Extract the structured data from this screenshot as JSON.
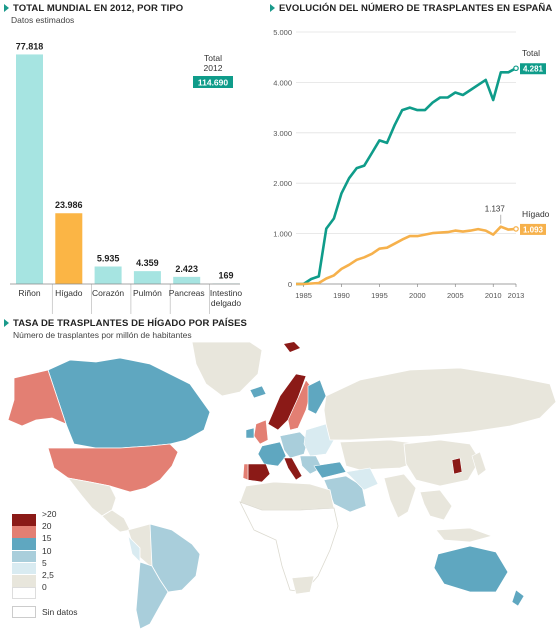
{
  "headers": {
    "world": "TOTAL MUNDIAL EN 2012, POR TIPO",
    "world_sub": "Datos estimados",
    "spain": "EVOLUCIÓN DEL NÚMERO DE TRASPLANTES EN ESPAÑA",
    "map": "TASA DE TRASPLANTES DE HÍGADO POR PAÍSES",
    "map_sub": "Número de trasplantes por millón de habitantes"
  },
  "colors": {
    "teal": "#0f9c8a",
    "orange": "#f6b14c",
    "bar_teal": "#a6e4e1",
    "bar_orange": "#fbb545",
    "map_red_dark": "#8b1a17",
    "map_red": "#e37f73",
    "map_blue": "#5fa7c0",
    "map_blue_light": "#a9cedb",
    "map_blue_pale": "#d9ebf1",
    "map_grey": "#e8e6dc",
    "map_nodata": "#ffffff"
  },
  "chart_data": [
    {
      "type": "bar",
      "categories": [
        "Riñon",
        "Hígado",
        "Corazón",
        "Pulmón",
        "Pancreas",
        "Intestino delgado"
      ],
      "category_lines": [
        [
          "Riñon"
        ],
        [
          "Hígado"
        ],
        [
          "Corazón"
        ],
        [
          "Pulmón"
        ],
        [
          "Pancreas"
        ],
        [
          "Intestino",
          "delgado"
        ]
      ],
      "values": [
        77818,
        23986,
        5935,
        4359,
        2423,
        169
      ],
      "value_labels": [
        "77.818",
        "23.986",
        "5.935",
        "4.359",
        "2.423",
        "169"
      ],
      "highlight": "Hígado",
      "total_label": "Total",
      "total_year": "2012",
      "total_value": "114.690",
      "ylim": [
        0,
        80000
      ]
    },
    {
      "type": "line",
      "ylim": [
        0,
        5000
      ],
      "yticks": [
        0,
        1000,
        2000,
        3000,
        4000,
        5000
      ],
      "ytick_labels": [
        "0",
        "1.000",
        "2.000",
        "3.000",
        "4.000",
        "5.000"
      ],
      "xlim": [
        1984,
        2013
      ],
      "xticks": [
        1985,
        1990,
        1995,
        2000,
        2005,
        2010,
        2013
      ],
      "xtick_labels": [
        "1985",
        "1990",
        "1995",
        "2000",
        "2005",
        "2010",
        "2013"
      ],
      "series": [
        {
          "name": "Total",
          "end_label": "4.281",
          "x": [
            1984,
            1985,
            1986,
            1987,
            1988,
            1989,
            1990,
            1991,
            1992,
            1993,
            1994,
            1995,
            1996,
            1997,
            1998,
            1999,
            2000,
            2001,
            2002,
            2003,
            2004,
            2005,
            2006,
            2007,
            2008,
            2009,
            2010,
            2011,
            2012,
            2013
          ],
          "y": [
            0,
            0,
            100,
            150,
            1100,
            1300,
            1800,
            2100,
            2300,
            2350,
            2600,
            2850,
            2800,
            3150,
            3450,
            3500,
            3450,
            3450,
            3600,
            3700,
            3700,
            3800,
            3750,
            3850,
            3950,
            4050,
            3650,
            4200,
            4200,
            4281
          ]
        },
        {
          "name": "Hígado",
          "end_label": "1.093",
          "x": [
            1984,
            1985,
            1986,
            1987,
            1988,
            1989,
            1990,
            1991,
            1992,
            1993,
            1994,
            1995,
            1996,
            1997,
            1998,
            1999,
            2000,
            2001,
            2002,
            2003,
            2004,
            2005,
            2006,
            2007,
            2008,
            2009,
            2010,
            2011,
            2012,
            2013
          ],
          "y": [
            0,
            0,
            10,
            20,
            110,
            170,
            300,
            380,
            480,
            530,
            600,
            700,
            720,
            800,
            880,
            950,
            950,
            980,
            1010,
            1020,
            1030,
            1060,
            1040,
            1060,
            1090,
            1060,
            980,
            1137,
            1080,
            1093
          ]
        }
      ],
      "annotation": {
        "x": 2011,
        "label": "1.137"
      }
    }
  ],
  "map_legend": {
    "items": [
      {
        "label": ">20",
        "color": "#8b1a17"
      },
      {
        "label": "20",
        "color": "#e37f73"
      },
      {
        "label": "15",
        "color": "#5fa7c0"
      },
      {
        "label": "10",
        "color": "#a9cedb"
      },
      {
        "label": "5",
        "color": "#d9ebf1"
      },
      {
        "label": "2,5",
        "color": "#e8e6dc"
      },
      {
        "label": "0",
        "color": "#ffffff"
      }
    ],
    "no_data": "Sin datos"
  }
}
